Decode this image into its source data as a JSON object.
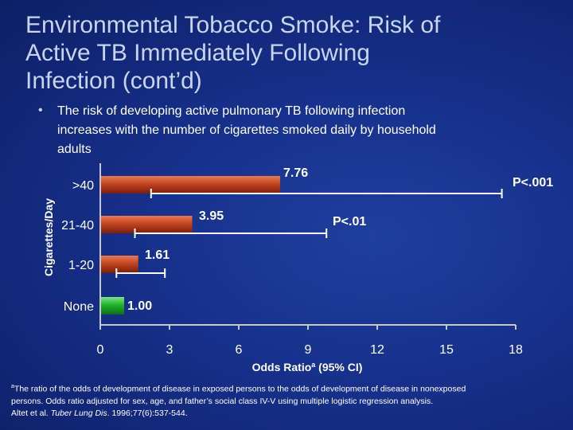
{
  "slide": {
    "title_lines": [
      "Environmental Tobacco Smoke: Risk of",
      "Active TB Immediately Following",
      "Infection (cont’d)"
    ],
    "bullet_lines": [
      "The risk of developing active pulmonary TB following infection",
      "increases with the number of cigarettes smoked daily by household",
      "adults"
    ],
    "footnote": {
      "sup": "a",
      "line1": "The ratio of the odds of development of disease in exposed persons to the odds of development of disease in nonexposed",
      "line2": "persons. Odds ratio adjusted for sex, age, and father’s social class IV-V using multiple logistic regression analysis.",
      "line3_prefix": "Altet et al. ",
      "line3_journal": "Tuber Lung Dis",
      "line3_suffix": ". 1996;77(6):537-544."
    }
  },
  "chart_data": {
    "type": "bar",
    "orientation": "horizontal",
    "xlabel": "Odds Ratio",
    "xlabel_sup": "a",
    "xlabel_suffix": " (95% CI)",
    "ylabel": "Cigarettes/Day",
    "xlim": [
      0,
      18
    ],
    "xticks": [
      "0",
      "3",
      "6",
      "9",
      "12",
      "15",
      "18"
    ],
    "categories": [
      ">40",
      "21-40",
      "1-20",
      "None"
    ],
    "values": [
      7.76,
      3.95,
      1.61,
      1.0
    ],
    "value_labels": [
      "7.76",
      "3.95",
      "1.61",
      "1.00"
    ],
    "ci_low": [
      2.2,
      1.5,
      0.7,
      null
    ],
    "ci_high": [
      17.4,
      9.8,
      2.8,
      null
    ],
    "annotations": [
      {
        "text": "P<.001",
        "category": ">40"
      },
      {
        "text": "P<.01",
        "category": "21-40"
      }
    ],
    "colors": {
      "exposed": "#a8321c",
      "exposed_light": "#e87a55",
      "reference": "#1fb32c",
      "axis": "#c8c8c8",
      "text": "#ffffff"
    }
  }
}
